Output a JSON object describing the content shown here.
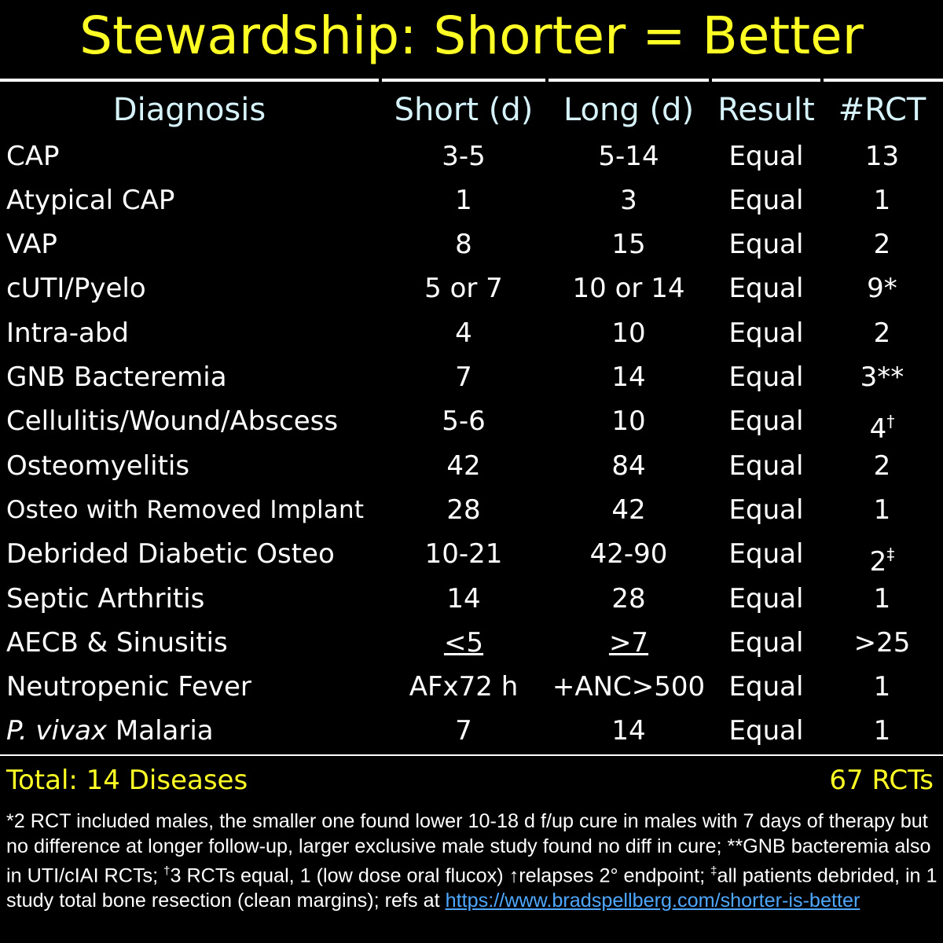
{
  "title": "Stewardship: Shorter = Better",
  "headers": {
    "diagnosis": "Diagnosis",
    "short": "Short (d)",
    "long": "Long (d)",
    "result": "Result",
    "rct": "#RCT"
  },
  "rows": [
    {
      "diagnosis": "CAP",
      "short": "3-5",
      "long": "5-14",
      "result": "Equal",
      "rct": "13"
    },
    {
      "diagnosis": "Atypical CAP",
      "short": "1",
      "long": "3",
      "result": "Equal",
      "rct": "1"
    },
    {
      "diagnosis": "VAP",
      "short": "8",
      "long": "15",
      "result": "Equal",
      "rct": "2"
    },
    {
      "diagnosis": "cUTI/Pyelo",
      "short": "5 or 7",
      "long": "10 or 14",
      "result": "Equal",
      "rct": "9*"
    },
    {
      "diagnosis": "Intra-abd",
      "short": "4",
      "long": "10",
      "result": "Equal",
      "rct": "2"
    },
    {
      "diagnosis": "GNB Bacteremia",
      "short": "7",
      "long": "14",
      "result": "Equal",
      "rct": "3**"
    },
    {
      "diagnosis": "Cellulitis/Wound/Abscess",
      "short": "5-6",
      "long": "10",
      "result": "Equal",
      "rct": "4",
      "rct_sup": "†"
    },
    {
      "diagnosis": "Osteomyelitis",
      "short": "42",
      "long": "84",
      "result": "Equal",
      "rct": "2"
    },
    {
      "diagnosis": "Osteo with Removed Implant",
      "short": "28",
      "long": "42",
      "result": "Equal",
      "rct": "1"
    },
    {
      "diagnosis": "Debrided Diabetic Osteo",
      "short": "10-21",
      "long": "42-90",
      "result": "Equal",
      "rct": "2",
      "rct_sup": "‡"
    },
    {
      "diagnosis": "Septic Arthritis",
      "short": "14",
      "long": "28",
      "result": "Equal",
      "rct": "1"
    },
    {
      "diagnosis": "AECB & Sinusitis",
      "short": "<5",
      "long": ">7",
      "result": "Equal",
      "rct": ">25"
    },
    {
      "diagnosis": "Neutropenic Fever",
      "short": "AFx72 h",
      "long": "+ANC>500",
      "result": "Equal",
      "rct": "1"
    },
    {
      "diagnosis_italic": "P. vivax",
      "diagnosis": " Malaria",
      "short": "7",
      "long": "14",
      "result": "Equal",
      "rct": "1"
    }
  ],
  "total": {
    "left": "Total: 14 Diseases",
    "right": "67 RCTs"
  },
  "footnote": {
    "p1": "*2 RCT included males, the smaller one found lower 10-18 d f/up cure in males with 7 days of therapy but no difference at longer follow-up, larger exclusive male study found no diff in cure; **GNB bacteremia also in UTI/cIAI RCTs; ",
    "dagger": "†",
    "p2": "3 RCTs equal, 1 (low dose oral flucox) ",
    "up_arrow": "↑",
    "p3": "relapses 2° endpoint; ",
    "ddagger": "‡",
    "p4": "all patients debrided, in 1 study total bone resection (clean margins); refs at ",
    "link": "https://www.bradspellberg.com/shorter-is-better"
  }
}
